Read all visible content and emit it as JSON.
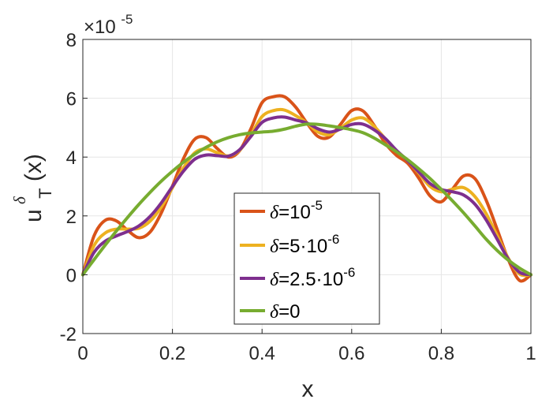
{
  "chart_data": {
    "type": "line",
    "xlabel": "x",
    "ylabel": {
      "base": "u",
      "superscript": "δ",
      "subscript": "T",
      "suffix": "(x)"
    },
    "y_multiplier": {
      "prefix": "×10",
      "exponent": "-5"
    },
    "xlim": [
      0,
      1
    ],
    "ylim": [
      -2,
      8
    ],
    "x_ticks": [
      "0",
      "0.2",
      "0.4",
      "0.6",
      "0.8",
      "1"
    ],
    "y_ticks": [
      "-2",
      "0",
      "2",
      "4",
      "6",
      "8"
    ],
    "grid": true,
    "legend_position": "bottom-center",
    "x": [
      0,
      0.025,
      0.05,
      0.075,
      0.1,
      0.125,
      0.15,
      0.175,
      0.2,
      0.225,
      0.25,
      0.275,
      0.3,
      0.325,
      0.35,
      0.375,
      0.4,
      0.425,
      0.45,
      0.475,
      0.5,
      0.525,
      0.55,
      0.575,
      0.6,
      0.625,
      0.65,
      0.675,
      0.7,
      0.725,
      0.75,
      0.775,
      0.8,
      0.825,
      0.85,
      0.875,
      0.9,
      0.925,
      0.95,
      0.975,
      1
    ],
    "series": [
      {
        "legend": {
          "prefix": "δ",
          "text": "=10",
          "exponent": "-5"
        },
        "color": "#d95319",
        "values": [
          0,
          1.32,
          1.85,
          1.83,
          1.51,
          1.26,
          1.45,
          2.1,
          3.01,
          3.96,
          4.61,
          4.66,
          4.29,
          4.0,
          4.22,
          4.96,
          5.85,
          6.05,
          6.05,
          5.7,
          5.16,
          4.7,
          4.68,
          5.11,
          5.58,
          5.57,
          5.08,
          4.47,
          4.06,
          3.79,
          3.28,
          2.68,
          2.48,
          2.91,
          3.36,
          3.27,
          2.54,
          1.53,
          0.5,
          -0.2,
          0
        ]
      },
      {
        "legend": {
          "prefix": "δ",
          "text": "=5·10",
          "exponent": "-6"
        },
        "color": "#edb120",
        "values": [
          0,
          0.99,
          1.42,
          1.55,
          1.55,
          1.58,
          1.82,
          2.3,
          2.96,
          3.64,
          4.15,
          4.28,
          4.15,
          4.04,
          4.23,
          4.75,
          5.38,
          5.58,
          5.6,
          5.41,
          5.16,
          4.85,
          4.76,
          4.98,
          5.26,
          5.33,
          5.05,
          4.62,
          4.2,
          3.88,
          3.45,
          3.0,
          2.82,
          2.91,
          2.96,
          2.66,
          2.08,
          1.32,
          0.55,
          0.02,
          0
        ]
      },
      {
        "legend": {
          "prefix": "δ",
          "text": "=2.5·10",
          "exponent": "-6"
        },
        "color": "#7e2f8e",
        "values": [
          0,
          0.76,
          1.14,
          1.32,
          1.47,
          1.66,
          1.98,
          2.44,
          3.0,
          3.53,
          3.93,
          4.07,
          4.05,
          4.03,
          4.25,
          4.7,
          5.18,
          5.33,
          5.36,
          5.26,
          5.16,
          4.96,
          4.85,
          4.95,
          5.11,
          5.12,
          4.93,
          4.63,
          4.23,
          3.88,
          3.49,
          3.1,
          2.9,
          2.82,
          2.71,
          2.4,
          1.87,
          1.2,
          0.52,
          0.08,
          0
        ]
      },
      {
        "legend": {
          "prefix": "δ",
          "text": "=0",
          "exponent": ""
        },
        "color": "#77ac30",
        "values": [
          0,
          0.51,
          1.01,
          1.49,
          1.95,
          2.39,
          2.8,
          3.18,
          3.52,
          3.83,
          4.1,
          4.33,
          4.52,
          4.66,
          4.76,
          4.82,
          4.85,
          4.88,
          4.95,
          5.05,
          5.12,
          5.11,
          5.06,
          5.0,
          4.93,
          4.83,
          4.65,
          4.42,
          4.18,
          3.91,
          3.6,
          3.27,
          2.9,
          2.51,
          2.1,
          1.66,
          1.21,
          0.82,
          0.49,
          0.22,
          0
        ]
      }
    ]
  }
}
